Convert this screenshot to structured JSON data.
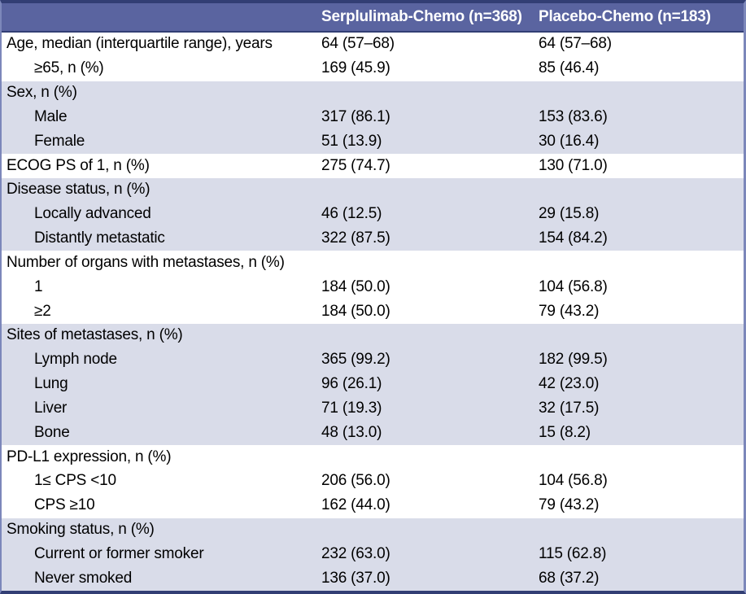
{
  "colors": {
    "header_bg": "#5a64a0",
    "frame_dark": "#323e74",
    "shaded_row_bg": "#d9dce9",
    "side_border": "#7c87ba",
    "header_text": "#ffffff",
    "body_text": "#000000",
    "row_bg": "#ffffff"
  },
  "table": {
    "header": {
      "col1": "",
      "col2": "Serplulimab-Chemo (n=368)",
      "col3": "Placebo-Chemo (n=183)"
    },
    "rows": [
      {
        "label": "Age, median (interquartile range), years",
        "indent": false,
        "shaded": false,
        "v1": "64 (57–68)",
        "v2": "64 (57–68)"
      },
      {
        "label": "≥65, n (%)",
        "indent": true,
        "shaded": false,
        "v1": "169 (45.9)",
        "v2": "85 (46.4)"
      },
      {
        "label": "Sex, n (%)",
        "indent": false,
        "shaded": true,
        "v1": "",
        "v2": ""
      },
      {
        "label": "Male",
        "indent": true,
        "shaded": true,
        "v1": "317 (86.1)",
        "v2": "153 (83.6)"
      },
      {
        "label": "Female",
        "indent": true,
        "shaded": true,
        "v1": "51 (13.9)",
        "v2": "30 (16.4)"
      },
      {
        "label": "ECOG PS of 1, n (%)",
        "indent": false,
        "shaded": false,
        "v1": "275 (74.7)",
        "v2": "130 (71.0)"
      },
      {
        "label": "Disease status, n (%)",
        "indent": false,
        "shaded": true,
        "v1": "",
        "v2": ""
      },
      {
        "label": "Locally advanced",
        "indent": true,
        "shaded": true,
        "v1": "46 (12.5)",
        "v2": "29 (15.8)"
      },
      {
        "label": "Distantly metastatic",
        "indent": true,
        "shaded": true,
        "v1": "322 (87.5)",
        "v2": "154 (84.2)"
      },
      {
        "label": "Number of organs with metastases, n (%)",
        "indent": false,
        "shaded": false,
        "v1": "",
        "v2": ""
      },
      {
        "label": "1",
        "indent": true,
        "shaded": false,
        "v1": "184 (50.0)",
        "v2": "104 (56.8)"
      },
      {
        "label": "≥2",
        "indent": true,
        "shaded": false,
        "v1": "184 (50.0)",
        "v2": "79 (43.2)"
      },
      {
        "label": "Sites of metastases, n (%)",
        "indent": false,
        "shaded": true,
        "v1": "",
        "v2": ""
      },
      {
        "label": "Lymph node",
        "indent": true,
        "shaded": true,
        "v1": "365 (99.2)",
        "v2": "182 (99.5)"
      },
      {
        "label": "Lung",
        "indent": true,
        "shaded": true,
        "v1": "96 (26.1)",
        "v2": "42 (23.0)"
      },
      {
        "label": "Liver",
        "indent": true,
        "shaded": true,
        "v1": "71 (19.3)",
        "v2": "32 (17.5)"
      },
      {
        "label": "Bone",
        "indent": true,
        "shaded": true,
        "v1": "48 (13.0)",
        "v2": "15 (8.2)"
      },
      {
        "label": "PD-L1 expression, n (%)",
        "indent": false,
        "shaded": false,
        "v1": "",
        "v2": ""
      },
      {
        "label": "1≤ CPS <10",
        "indent": true,
        "shaded": false,
        "v1": "206 (56.0)",
        "v2": "104 (56.8)"
      },
      {
        "label": "CPS ≥10",
        "indent": true,
        "shaded": false,
        "v1": "162 (44.0)",
        "v2": "79 (43.2)"
      },
      {
        "label": "Smoking status, n (%)",
        "indent": false,
        "shaded": true,
        "v1": "",
        "v2": ""
      },
      {
        "label": "Current or former smoker",
        "indent": true,
        "shaded": true,
        "v1": "232 (63.0)",
        "v2": "115 (62.8)"
      },
      {
        "label": "Never smoked",
        "indent": true,
        "shaded": true,
        "v1": "136 (37.0)",
        "v2": "68 (37.2)"
      }
    ]
  }
}
